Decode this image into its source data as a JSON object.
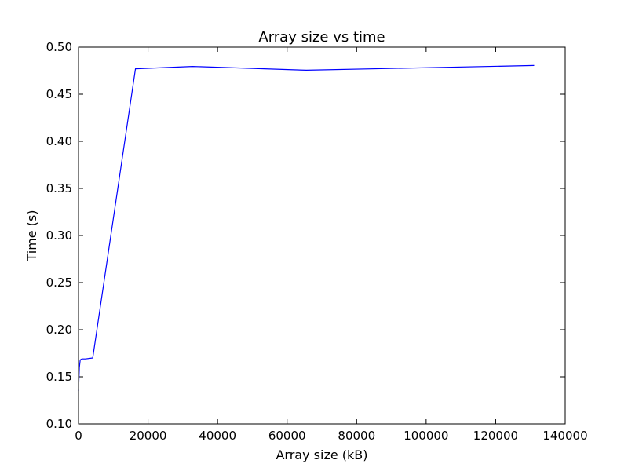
{
  "chart_data": {
    "type": "line",
    "title": "Array size vs time",
    "xlabel": "Array size (kB)",
    "ylabel": "Time (s)",
    "xlim": [
      0,
      140000
    ],
    "ylim": [
      0.1,
      0.5
    ],
    "xticks": [
      "0",
      "20000",
      "40000",
      "60000",
      "80000",
      "100000",
      "120000",
      "140000"
    ],
    "yticks": [
      "0.10",
      "0.15",
      "0.20",
      "0.25",
      "0.30",
      "0.35",
      "0.40",
      "0.45",
      "0.50"
    ],
    "grid": false,
    "series": [
      {
        "color": "#0000ff",
        "x": [
          0,
          250,
          500,
          1000,
          2000,
          4096,
          16384,
          32768,
          65536,
          131072
        ],
        "y": [
          0.135,
          0.16,
          0.168,
          0.169,
          0.169,
          0.17,
          0.477,
          0.4795,
          0.4755,
          0.4805
        ]
      }
    ]
  }
}
